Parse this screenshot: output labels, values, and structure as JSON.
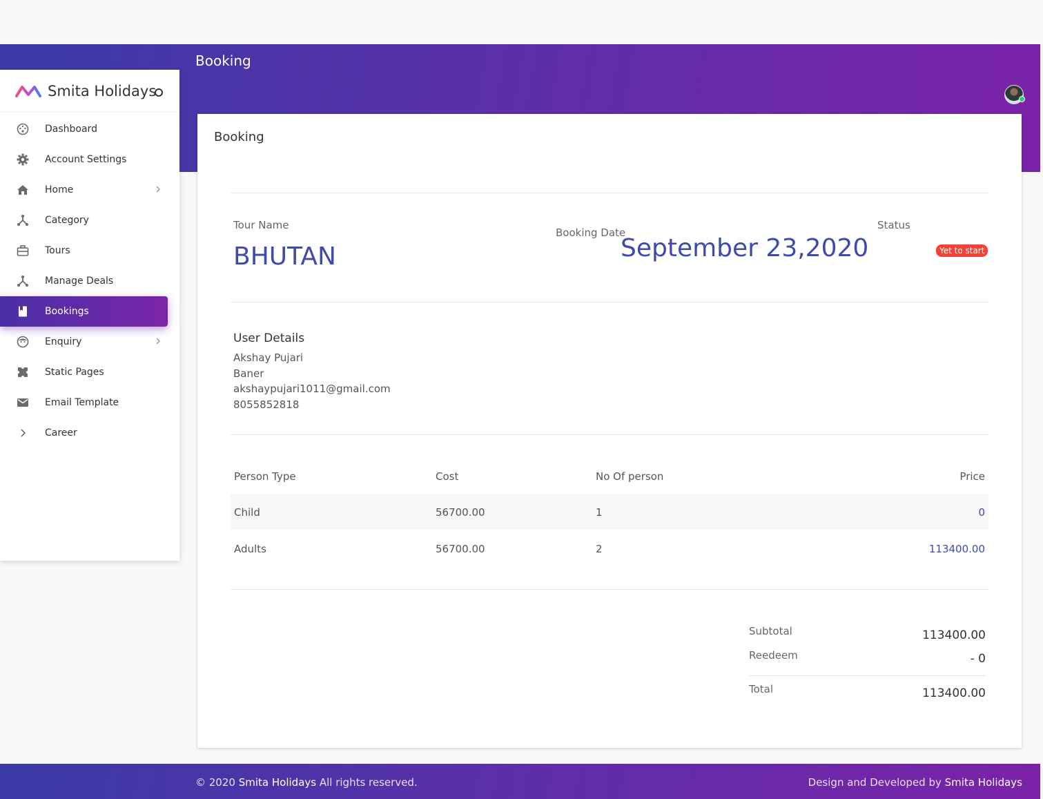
{
  "header": {
    "title": "Booking"
  },
  "sidebar": {
    "brand": "Smita Holidays",
    "items": [
      {
        "label": "Dashboard",
        "icon": "dashboard-icon"
      },
      {
        "label": "Account Settings",
        "icon": "gear-icon"
      },
      {
        "label": "Home",
        "icon": "home-icon",
        "has_submenu": true
      },
      {
        "label": "Category",
        "icon": "category-icon"
      },
      {
        "label": "Tours",
        "icon": "briefcase-icon"
      },
      {
        "label": "Manage Deals",
        "icon": "deals-icon"
      },
      {
        "label": "Bookings",
        "icon": "book-icon",
        "active": true
      },
      {
        "label": "Enquiry",
        "icon": "face-icon",
        "has_submenu": true
      },
      {
        "label": "Static Pages",
        "icon": "puzzle-icon"
      },
      {
        "label": "Email Template",
        "icon": "mail-icon"
      },
      {
        "label": "Career",
        "icon": "chevron-right-icon"
      }
    ]
  },
  "card": {
    "title": "Booking",
    "tour_name_label": "Tour Name",
    "tour_name": "BHUTAN",
    "booking_date_label": "Booking Date",
    "booking_date": "September 23,2020",
    "status_label": "Status",
    "status": "Yet to start",
    "user_details": {
      "title": "User Details",
      "name": "Akshay Pujari",
      "address": "Baner",
      "email": "akshaypujari1011@gmail.com",
      "phone": "8055852818"
    },
    "table": {
      "headers": [
        "Person Type",
        "Cost",
        "No Of person",
        "Price"
      ],
      "rows": [
        [
          "Child",
          "56700.00",
          "1",
          "0"
        ],
        [
          "Adults",
          "56700.00",
          "2",
          "113400.00"
        ]
      ]
    },
    "summary": {
      "subtotal_label": "Subtotal",
      "subtotal": "113400.00",
      "redeem_label": "Reedeem",
      "redeem": "- 0",
      "total_label": "Total",
      "total": "113400.00"
    }
  },
  "footer": {
    "copyright_prefix": "© 2020",
    "copyright_brand": "Smita Holidays",
    "copyright_suffix": "All rights reserved.",
    "credit_prefix": "Design and Developed by",
    "credit_brand": "Smita Holidays"
  },
  "colors": {
    "accent": "#3f4aad",
    "gradient_start": "#3a3aa8",
    "gradient_end": "#7a22a8",
    "status_badge": "#f44336"
  }
}
